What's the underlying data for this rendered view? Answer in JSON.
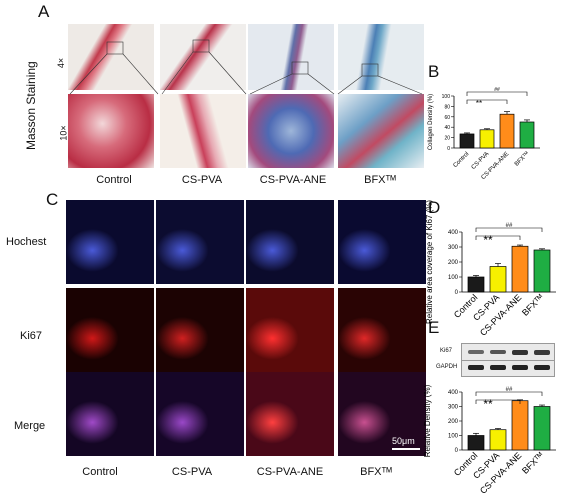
{
  "panel_labels": {
    "a": "A",
    "b": "B",
    "c": "C",
    "d": "D",
    "e": "E"
  },
  "panel_a": {
    "side_label": "Masson Staining",
    "row_labels": [
      "4×",
      "10×"
    ],
    "col_labels": [
      "Control",
      "CS-PVA",
      "CS-PVA-ANE",
      "BFXᵀᴹ"
    ]
  },
  "panel_c": {
    "row_labels": [
      "Hochest",
      "Ki67",
      "Merge"
    ],
    "col_labels": [
      "Control",
      "CS-PVA",
      "CS-PVA-ANE",
      "BFXᵀᴹ"
    ],
    "scale_bar": "50μm"
  },
  "blot": {
    "labels": [
      "Ki67",
      "GAPDH"
    ]
  },
  "colors": {
    "control": "#1a1a1a",
    "cspva": "#f7f000",
    "cspvaane": "#ff8c1a",
    "bfx": "#1fae43"
  },
  "chart_data": [
    {
      "type": "bar",
      "panel": "B",
      "categories": [
        "Control",
        "CS-PVA",
        "CS-PVA-ANE",
        "BFXᵀᴹ"
      ],
      "values": [
        27,
        35,
        65,
        50
      ],
      "errors": [
        2,
        2,
        5,
        4
      ],
      "ylabel": "Collagen Density (%)",
      "ylim": [
        0,
        100
      ],
      "yticks": [
        0,
        20,
        40,
        60,
        80,
        100
      ],
      "sig": [
        {
          "from": 0,
          "to": 2,
          "label": "**"
        },
        {
          "from": 0,
          "to": 3,
          "label": "##"
        }
      ]
    },
    {
      "type": "bar",
      "panel": "D",
      "categories": [
        "Control",
        "CS-PVA",
        "CS-PVA-ANE",
        "BFXᵀᴹ"
      ],
      "values": [
        100,
        170,
        305,
        280
      ],
      "errors": [
        10,
        20,
        8,
        8
      ],
      "ylabel": "Relative area coverage of Ki67 (%)",
      "ylim": [
        0,
        400
      ],
      "yticks": [
        0,
        100,
        200,
        300,
        400
      ],
      "sig": [
        {
          "from": 0,
          "to": 2,
          "label": "**"
        },
        {
          "from": 0,
          "to": 3,
          "label": "##"
        }
      ]
    },
    {
      "type": "bar",
      "panel": "E",
      "categories": [
        "Control",
        "CS-PVA",
        "CS-PVA-ANE",
        "BFXᵀᴹ"
      ],
      "values": [
        100,
        140,
        340,
        300
      ],
      "errors": [
        15,
        8,
        6,
        10
      ],
      "ylabel": "Relative Density (%)",
      "ylim": [
        0,
        400
      ],
      "yticks": [
        0,
        100,
        200,
        300,
        400
      ],
      "sig": [
        {
          "from": 0,
          "to": 2,
          "label": "**"
        },
        {
          "from": 0,
          "to": 3,
          "label": "##"
        }
      ]
    }
  ]
}
